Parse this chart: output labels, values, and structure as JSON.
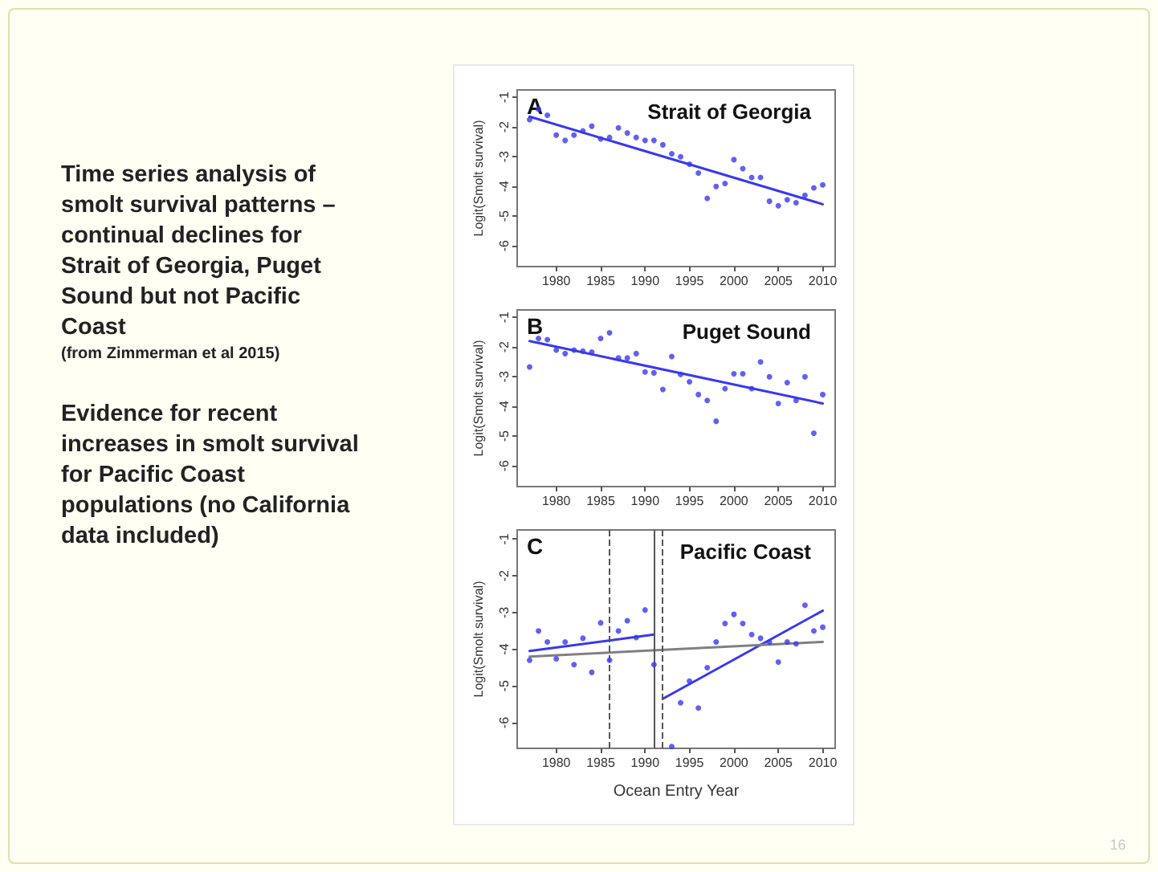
{
  "chart_data": [
    {
      "type": "other",
      "title": "Time series analysis of smolt survival patterns – continual declines for Strait of Georgia, Puget Sound but not Pacific Coast",
      "subtitle": "(from Zimmerman et al 2015)",
      "annotations": [
        "Evidence for recent increases in smolt survival for Pacific Coast populations (no California data included)",
        "16"
      ]
    },
    {
      "type": "scatter",
      "title": "Strait of Georgia",
      "annotations": [
        "A"
      ],
      "ylabel": "Logit(Smolt survival)",
      "x": [
        1977,
        1978,
        1979,
        1980,
        1981,
        1982,
        1983,
        1984,
        1985,
        1986,
        1987,
        1988,
        1989,
        1990,
        1991,
        1992,
        1993,
        1994,
        1995,
        1996,
        1997,
        1998,
        1999,
        2000,
        2001,
        2002,
        2003,
        2004,
        2005,
        2006,
        2007,
        2008,
        2009,
        2010
      ],
      "xlim": [
        1975.6,
        2011.4
      ],
      "xticks": [
        1980,
        1985,
        1990,
        1995,
        2000,
        2005,
        2010
      ],
      "ylim": [
        -6.7,
        -0.75
      ],
      "yticks": [
        -1,
        -2,
        -3,
        -4,
        -5,
        -6
      ],
      "grid": false,
      "series": [
        {
          "marker": "circle",
          "color": "#3838f0",
          "values": [
            -1.75,
            -1.4,
            -1.6,
            -2.27,
            -2.45,
            -2.27,
            -2.13,
            -1.97,
            -2.4,
            -2.35,
            -2.03,
            -2.2,
            -2.35,
            -2.45,
            -2.45,
            -2.6,
            -2.9,
            -3.0,
            -3.25,
            -3.55,
            -4.4,
            -4.0,
            -3.9,
            -3.1,
            -3.4,
            -3.7,
            -3.7,
            -4.5,
            -4.65,
            -4.45,
            -4.55,
            -4.3,
            -4.05,
            -3.95
          ]
        },
        {
          "type": "line",
          "color": "#3838f0",
          "x": [
            1977,
            2010
          ],
          "values": [
            -1.65,
            -4.6
          ]
        }
      ]
    },
    {
      "type": "scatter",
      "title": "Puget Sound",
      "annotations": [
        "B"
      ],
      "ylabel": "Logit(Smolt survival)",
      "x": [
        1977,
        1978,
        1979,
        1980,
        1981,
        1982,
        1983,
        1984,
        1985,
        1986,
        1987,
        1988,
        1989,
        1990,
        1991,
        1992,
        1993,
        1994,
        1995,
        1996,
        1997,
        1998,
        1999,
        2000,
        2001,
        2002,
        2003,
        2004,
        2005,
        2006,
        2007,
        2008,
        2009,
        2010
      ],
      "xlim": [
        1975.6,
        2011.4
      ],
      "xticks": [
        1980,
        1985,
        1990,
        1995,
        2000,
        2005,
        2010
      ],
      "ylim": [
        -6.7,
        -0.75
      ],
      "yticks": [
        -1,
        -2,
        -3,
        -4,
        -5,
        -6
      ],
      "grid": false,
      "series": [
        {
          "marker": "circle",
          "color": "#3838f0",
          "values": [
            -2.67,
            -1.71,
            -1.75,
            -2.1,
            -2.22,
            -2.1,
            -2.14,
            -2.17,
            -1.71,
            -1.52,
            -2.37,
            -2.37,
            -2.22,
            -2.84,
            -2.87,
            -3.43,
            -2.32,
            -2.92,
            -3.17,
            -3.6,
            -3.8,
            -4.5,
            -3.4,
            -2.9,
            -2.9,
            -3.4,
            -2.5,
            -3.0,
            -3.9,
            -3.2,
            -3.8,
            -3.0,
            -4.9,
            -3.6
          ]
        },
        {
          "type": "line",
          "color": "#3838f0",
          "x": [
            1977,
            2010
          ],
          "values": [
            -1.8,
            -3.9
          ]
        }
      ]
    },
    {
      "type": "scatter",
      "title": "Pacific Coast",
      "annotations": [
        "C"
      ],
      "ylabel": "Logit(Smolt survival)",
      "xlabel": "Ocean Entry Year",
      "x": [
        1977,
        1978,
        1979,
        1980,
        1981,
        1982,
        1983,
        1984,
        1985,
        1986,
        1987,
        1988,
        1989,
        1990,
        1991,
        1992,
        1993,
        1994,
        1995,
        1996,
        1997,
        1998,
        1999,
        2000,
        2001,
        2002,
        2003,
        2004,
        2005,
        2006,
        2007,
        2008,
        2009,
        2010
      ],
      "xlim": [
        1975.6,
        2011.4
      ],
      "xticks": [
        1980,
        1985,
        1990,
        1995,
        2000,
        2005,
        2010
      ],
      "ylim": [
        -6.7,
        -0.75
      ],
      "yticks": [
        -1,
        -2,
        -3,
        -4,
        -5,
        -6
      ],
      "grid": false,
      "series": [
        {
          "marker": "circle",
          "color": "#3838f0",
          "values": [
            -4.3,
            -3.5,
            -3.8,
            -4.26,
            -3.8,
            -4.42,
            -3.7,
            -4.63,
            -3.28,
            -4.3,
            -3.5,
            -3.22,
            -3.68,
            -2.93,
            -4.42,
            null,
            -6.65,
            -5.46,
            -4.87,
            -5.6,
            -4.5,
            -3.8,
            -3.3,
            -3.05,
            -3.3,
            -3.6,
            -3.7,
            -3.8,
            -4.35,
            -3.8,
            -3.85,
            -2.8,
            -3.5,
            -3.4
          ]
        },
        {
          "type": "line",
          "color": "#3838f0",
          "x": [
            1977,
            1991
          ],
          "values": [
            -4.05,
            -3.6
          ]
        },
        {
          "type": "line",
          "color": "#3838f0",
          "x": [
            1992,
            2010
          ],
          "values": [
            -5.35,
            -2.95
          ]
        },
        {
          "type": "line",
          "color": "#808080",
          "x": [
            1977,
            2010
          ],
          "values": [
            -4.2,
            -3.8
          ]
        }
      ],
      "ref_lines": [
        {
          "axis": "x",
          "value": 1986,
          "line_style": "dashed",
          "color": "#555555"
        },
        {
          "axis": "x",
          "value": 1991,
          "line_style": "solid",
          "color": "#555555"
        },
        {
          "axis": "x",
          "value": 1992,
          "line_style": "dashed",
          "color": "#555555"
        }
      ]
    }
  ]
}
